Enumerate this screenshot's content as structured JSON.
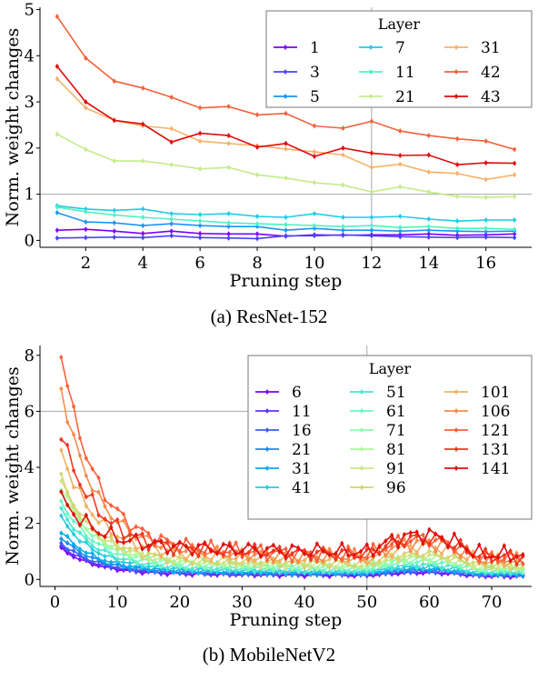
{
  "captions": {
    "a": "(a) ResNet-152",
    "b": "(b) MobileNetV2"
  },
  "chart_data": [
    {
      "type": "line",
      "xlabel": "Pruning step",
      "ylabel": "Norm. weight changes",
      "xlim": [
        0.4,
        17.6
      ],
      "ylim": [
        -0.15,
        5.05
      ],
      "xticks": [
        2,
        4,
        6,
        8,
        10,
        12,
        14,
        16
      ],
      "yticks": [
        0,
        1,
        2,
        3,
        4,
        5
      ],
      "grid": "partial",
      "legend": {
        "title": "Layer",
        "position": "top-right",
        "columns": 3
      },
      "x": [
        1,
        2,
        3,
        4,
        5,
        6,
        7,
        8,
        9,
        10,
        11,
        12,
        13,
        14,
        15,
        16,
        17
      ],
      "series": [
        {
          "name": "1",
          "color": "#7f00ff",
          "values": [
            0.22,
            0.24,
            0.2,
            0.15,
            0.2,
            0.15,
            0.14,
            0.14,
            0.09,
            0.12,
            0.11,
            0.12,
            0.12,
            0.14,
            0.11,
            0.12,
            0.14
          ]
        },
        {
          "name": "3",
          "color": "#4a43fb",
          "values": [
            0.05,
            0.06,
            0.07,
            0.06,
            0.1,
            0.06,
            0.05,
            0.04,
            0.1,
            0.1,
            0.12,
            0.1,
            0.08,
            0.07,
            0.06,
            0.07,
            0.06
          ]
        },
        {
          "name": "5",
          "color": "#1996f3",
          "values": [
            0.6,
            0.4,
            0.38,
            0.32,
            0.36,
            0.32,
            0.3,
            0.3,
            0.22,
            0.26,
            0.22,
            0.22,
            0.2,
            0.22,
            0.2,
            0.19,
            0.2
          ]
        },
        {
          "name": "7",
          "color": "#1ecbe6",
          "values": [
            0.75,
            0.68,
            0.65,
            0.68,
            0.58,
            0.56,
            0.58,
            0.52,
            0.5,
            0.58,
            0.5,
            0.5,
            0.52,
            0.46,
            0.42,
            0.44,
            0.44
          ]
        },
        {
          "name": "11",
          "color": "#4df2c4",
          "values": [
            0.72,
            0.62,
            0.55,
            0.5,
            0.46,
            0.42,
            0.38,
            0.36,
            0.34,
            0.32,
            0.3,
            0.32,
            0.28,
            0.3,
            0.26,
            0.26,
            0.24
          ]
        },
        {
          "name": "21",
          "color": "#c4eb8a",
          "values": [
            2.3,
            1.97,
            1.72,
            1.72,
            1.64,
            1.55,
            1.58,
            1.42,
            1.35,
            1.25,
            1.2,
            1.05,
            1.16,
            1.05,
            0.95,
            0.93,
            0.95
          ]
        },
        {
          "name": "31",
          "color": "#f6b269",
          "values": [
            3.5,
            2.87,
            2.6,
            2.48,
            2.42,
            2.15,
            2.1,
            2.05,
            1.98,
            1.92,
            1.85,
            1.58,
            1.65,
            1.48,
            1.45,
            1.32,
            1.42
          ]
        },
        {
          "name": "42",
          "color": "#f1613b",
          "values": [
            4.85,
            3.95,
            3.45,
            3.3,
            3.1,
            2.87,
            2.9,
            2.72,
            2.75,
            2.48,
            2.43,
            2.58,
            2.37,
            2.27,
            2.2,
            2.15,
            1.97
          ]
        },
        {
          "name": "43",
          "color": "#e10b0b",
          "values": [
            3.77,
            3.0,
            2.6,
            2.52,
            2.13,
            2.32,
            2.27,
            2.02,
            2.1,
            1.82,
            2.0,
            1.89,
            1.84,
            1.85,
            1.64,
            1.68,
            1.67
          ]
        }
      ]
    },
    {
      "type": "line",
      "xlabel": "Pruning step",
      "ylabel": "Norm. weight changes",
      "xlim": [
        -2.4,
        76.4
      ],
      "ylim": [
        -0.25,
        8.35
      ],
      "xticks": [
        0,
        10,
        20,
        30,
        40,
        50,
        60,
        70
      ],
      "yticks": [
        0,
        2,
        4,
        6,
        8
      ],
      "grid": "partial",
      "legend": {
        "title": "Layer",
        "position": "top-right",
        "columns": 3
      },
      "x_start": 1,
      "x_end": 75,
      "series": [
        {
          "name": "6",
          "color": "#7f00ff",
          "start": 1.1,
          "mid": 0.2,
          "end": 0.05
        },
        {
          "name": "11",
          "color": "#5e32fc",
          "start": 1.2,
          "mid": 0.22,
          "end": 0.07
        },
        {
          "name": "16",
          "color": "#3d5ff7",
          "start": 1.3,
          "mid": 0.25,
          "end": 0.09
        },
        {
          "name": "21",
          "color": "#1c8af1",
          "start": 1.5,
          "mid": 0.28,
          "end": 0.1
        },
        {
          "name": "31",
          "color": "#07acea",
          "start": 1.7,
          "mid": 0.3,
          "end": 0.12
        },
        {
          "name": "41",
          "color": "#28cce0",
          "start": 2.2,
          "mid": 0.35,
          "end": 0.15
        },
        {
          "name": "51",
          "color": "#49e6d2",
          "start": 2.5,
          "mid": 0.4,
          "end": 0.18
        },
        {
          "name": "61",
          "color": "#6af6c2",
          "start": 2.8,
          "mid": 0.5,
          "end": 0.22
        },
        {
          "name": "71",
          "color": "#8bfeaf",
          "start": 3.2,
          "mid": 0.55,
          "end": 0.26
        },
        {
          "name": "81",
          "color": "#acf89a",
          "start": 3.3,
          "mid": 0.6,
          "end": 0.3
        },
        {
          "name": "91",
          "color": "#cde583",
          "start": 3.5,
          "mid": 0.65,
          "end": 0.32
        },
        {
          "name": "96",
          "color": "#d6d46e",
          "start": 3.6,
          "mid": 0.7,
          "end": 0.35
        },
        {
          "name": "101",
          "color": "#f3b062",
          "start": 4.6,
          "mid": 0.9,
          "end": 0.45
        },
        {
          "name": "106",
          "color": "#f88b4e",
          "start": 6.8,
          "mid": 1.0,
          "end": 0.5
        },
        {
          "name": "121",
          "color": "#fd6039",
          "start": 8.1,
          "mid": 1.1,
          "end": 0.55
        },
        {
          "name": "131",
          "color": "#f03722",
          "start": 5.2,
          "mid": 1.1,
          "end": 0.6
        },
        {
          "name": "141",
          "color": "#e0100d",
          "start": 2.9,
          "mid": 1.2,
          "end": 0.65
        }
      ]
    }
  ]
}
